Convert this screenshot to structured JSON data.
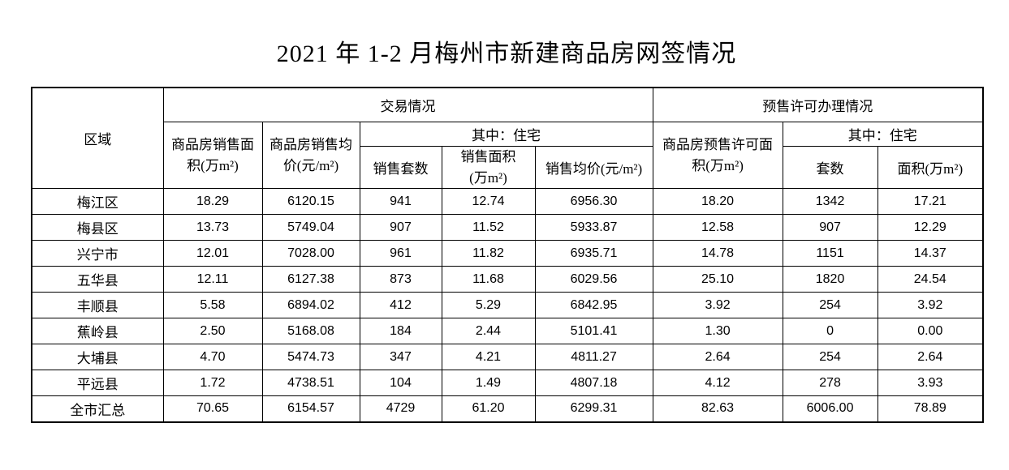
{
  "page": {
    "title": "2021 年 1-2 月梅州市新建商品房网签情况"
  },
  "colors": {
    "text": "#000000",
    "border": "#000000",
    "background": "#ffffff"
  },
  "table": {
    "header": {
      "region": "区域",
      "group_transaction": "交易情况",
      "group_presale": "预售许可办理情况",
      "sales_area": "商品房销售面\n积(万m²)",
      "sales_avg_price": "商品房销售均\n价(元/m²)",
      "among_residential_transaction": "其中：住宅",
      "among_residential_presale": "其中：住宅",
      "units_sold": "销售套数",
      "res_sales_area": "销售面积\n(万m²)",
      "res_avg_price": "销售均价(元/m²)",
      "presale_permit_area": "商品房预售许可面\n积(万m²)",
      "presale_units": "套数",
      "presale_res_area": "面积(万m²)"
    },
    "rows": [
      {
        "region": "梅江区",
        "values": [
          "18.29",
          "6120.15",
          "941",
          "12.74",
          "6956.30",
          "18.20",
          "1342",
          "17.21"
        ]
      },
      {
        "region": "梅县区",
        "values": [
          "13.73",
          "5749.04",
          "907",
          "11.52",
          "5933.87",
          "12.58",
          "907",
          "12.29"
        ]
      },
      {
        "region": "兴宁市",
        "values": [
          "12.01",
          "7028.00",
          "961",
          "11.82",
          "6935.71",
          "14.78",
          "1151",
          "14.37"
        ]
      },
      {
        "region": "五华县",
        "values": [
          "12.11",
          "6127.38",
          "873",
          "11.68",
          "6029.56",
          "25.10",
          "1820",
          "24.54"
        ]
      },
      {
        "region": "丰顺县",
        "values": [
          "5.58",
          "6894.02",
          "412",
          "5.29",
          "6842.95",
          "3.92",
          "254",
          "3.92"
        ]
      },
      {
        "region": "蕉岭县",
        "values": [
          "2.50",
          "5168.08",
          "184",
          "2.44",
          "5101.41",
          "1.30",
          "0",
          "0.00"
        ]
      },
      {
        "region": "大埔县",
        "values": [
          "4.70",
          "5474.73",
          "347",
          "4.21",
          "4811.27",
          "2.64",
          "254",
          "2.64"
        ]
      },
      {
        "region": "平远县",
        "values": [
          "1.72",
          "4738.51",
          "104",
          "1.49",
          "4807.18",
          "4.12",
          "278",
          "3.93"
        ]
      },
      {
        "region": "全市汇总",
        "values": [
          "70.65",
          "6154.57",
          "4729",
          "61.20",
          "6299.31",
          "82.63",
          "6006.00",
          "78.89"
        ]
      }
    ]
  }
}
